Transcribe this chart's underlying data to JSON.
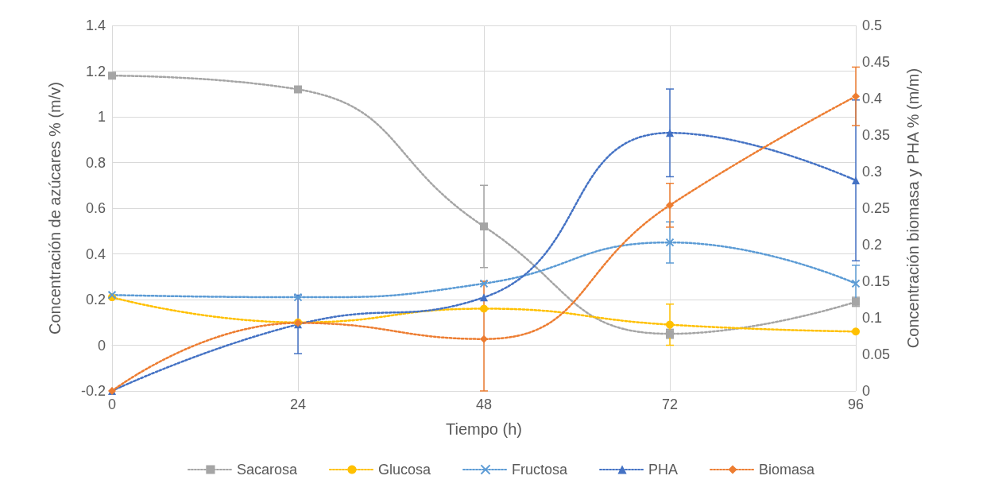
{
  "chart_data": {
    "type": "line",
    "xlabel": "Tiempo (h)",
    "ylabel": "Concentración de azúcares % (m/v)",
    "y2label": "Concentración biomasa y PHA % (m/m)",
    "x": [
      0,
      24,
      48,
      72,
      96
    ],
    "xlim": [
      0,
      96
    ],
    "xticks": [
      0,
      24,
      48,
      72,
      96
    ],
    "ylim": [
      -0.2,
      1.4
    ],
    "yticks": [
      -0.2,
      0,
      0.2,
      0.4,
      0.6,
      0.8,
      1,
      1.2,
      1.4
    ],
    "y2lim": [
      0,
      0.5
    ],
    "y2ticks": [
      0,
      0.05,
      0.1,
      0.15,
      0.2,
      0.25,
      0.3,
      0.35,
      0.4,
      0.45,
      0.5
    ],
    "grid": true,
    "legend": "bottom",
    "line_style": "dotted",
    "series": [
      {
        "name": "Sacarosa",
        "color": "#a5a5a5",
        "marker": "square",
        "values": [
          1.18,
          1.12,
          0.52,
          0.05,
          0.19
        ],
        "errors": [
          null,
          null,
          0.18,
          0.02,
          0.02
        ]
      },
      {
        "name": "Glucosa",
        "color": "#ffc000",
        "marker": "circle",
        "values": [
          0.21,
          0.1,
          0.16,
          0.09,
          0.06
        ],
        "errors": [
          null,
          null,
          null,
          0.09,
          null
        ]
      },
      {
        "name": "Fructosa",
        "color": "#5b9bd5",
        "marker": "cross",
        "values": [
          0.22,
          0.21,
          0.27,
          0.45,
          0.27
        ],
        "errors": [
          null,
          null,
          null,
          0.09,
          0.08
        ]
      },
      {
        "name": "PHA",
        "color": "#4472c4",
        "marker": "triangle",
        "axis": "y2",
        "values": [
          0,
          0.091,
          0.128,
          0.353,
          0.288
        ],
        "errors": [
          null,
          0.04,
          null,
          0.06,
          0.11
        ]
      },
      {
        "name": "Biomasa",
        "color": "#ed7d31",
        "marker": "diamond",
        "axis": "y2",
        "values": [
          0,
          0.093,
          0.071,
          0.254,
          0.403
        ],
        "errors": [
          null,
          null,
          [
            0,
            0.15
          ],
          0.03,
          0.04
        ]
      }
    ]
  }
}
